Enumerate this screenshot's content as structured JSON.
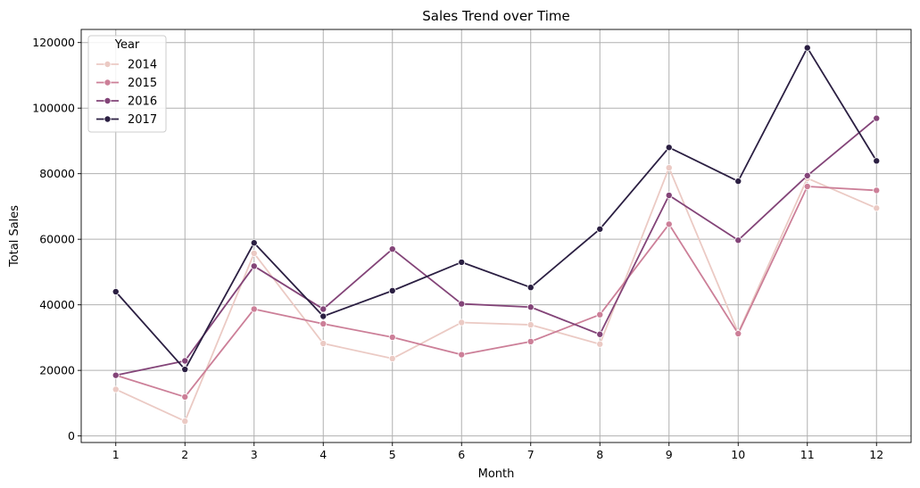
{
  "chart_data": {
    "type": "line",
    "title": "Sales Trend over Time",
    "xlabel": "Month",
    "ylabel": "Total Sales",
    "x": [
      1,
      2,
      3,
      4,
      5,
      6,
      7,
      8,
      9,
      10,
      11,
      12
    ],
    "xlim": [
      0.5,
      12.5
    ],
    "ylim": [
      -2000,
      124000
    ],
    "yticks": [
      0,
      20000,
      40000,
      60000,
      80000,
      100000,
      120000
    ],
    "grid": true,
    "legend": {
      "title": "Year",
      "position": "top-left"
    },
    "series": [
      {
        "name": "2014",
        "color": "#ebcac4",
        "values": [
          14200,
          4500,
          55700,
          28200,
          23600,
          34600,
          33900,
          28000,
          81800,
          31500,
          78600,
          69500
        ]
      },
      {
        "name": "2015",
        "color": "#cc7f98",
        "values": [
          18500,
          11900,
          38700,
          34200,
          30100,
          24800,
          28800,
          37000,
          64600,
          31200,
          76100,
          74900
        ]
      },
      {
        "name": "2016",
        "color": "#834478",
        "values": [
          18500,
          22900,
          51800,
          38700,
          57000,
          40300,
          39300,
          31000,
          73400,
          59700,
          79400,
          96900
        ]
      },
      {
        "name": "2017",
        "color": "#2b1f42",
        "values": [
          44000,
          20300,
          58900,
          36500,
          44300,
          53000,
          45300,
          63100,
          88000,
          77700,
          118400,
          83900
        ]
      }
    ]
  }
}
